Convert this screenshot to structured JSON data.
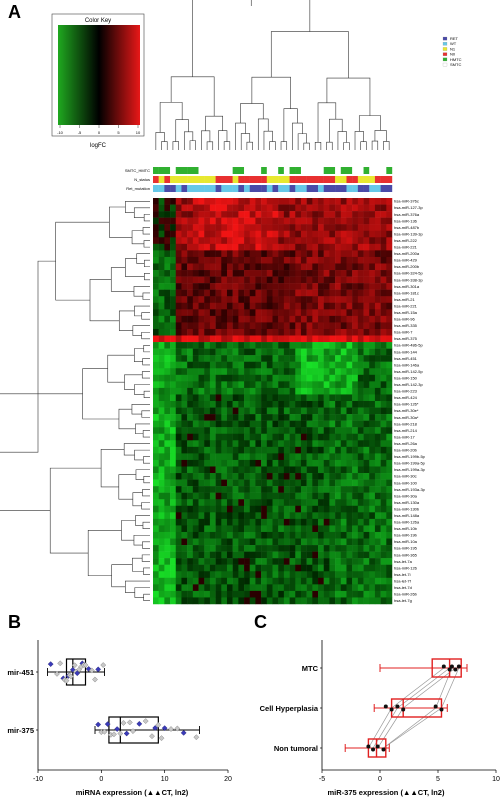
{
  "panels": {
    "a": "A",
    "b": "B",
    "c": "C"
  },
  "color_key": {
    "title": "Color Key",
    "xlabel": "logFC",
    "ticks": [
      "-10",
      "-5",
      "0",
      "5",
      "10"
    ]
  },
  "legend": [
    {
      "label": "RET",
      "color": "#4a4aa8"
    },
    {
      "label": "WT",
      "color": "#66c8e8"
    },
    {
      "label": "N1",
      "color": "#e8e830"
    },
    {
      "label": "N0",
      "color": "#e83030"
    },
    {
      "label": "HMTC",
      "color": "#30b030"
    },
    {
      "label": "SMTC",
      "color": "#ffffff"
    }
  ],
  "annotation_rows": [
    "SMTC_HMTC",
    "N_status",
    "Ret_mutation"
  ],
  "mirnas": [
    "hsa-miR-376c",
    "hsa-miR-127-3p",
    "hsa-miR-376a",
    "hsa-miR-136",
    "hsa-miR-487b",
    "hsa-miR-139-3p",
    "hsa-miR-222",
    "hsa-miR-221",
    "hsa-miR-200a",
    "hsa-miR-429",
    "hsa-miR-200b",
    "hsa-miR-324-5p",
    "hsa-miR-338-3p",
    "hsa-miR-301a",
    "hsa-miR-181c",
    "hsa-miR-21",
    "hsa-miR-221",
    "hsa-miR-15a",
    "hsa-miR-96",
    "hsa-miR-335",
    "hsa-miR-7",
    "hsa-miR-375",
    "hsa-miR-486-5p",
    "hsa-miR-144",
    "hsa-miR-451",
    "hsa-miR-146a",
    "hsa-miR-142-5p",
    "hsa-miR-150",
    "hsa-miR-142-3p",
    "hsa-miR-223",
    "hsa-miR-424",
    "hsa-miR-126*",
    "hsa-miR-30e*",
    "hsa-miR-30a*",
    "hsa-miR-218",
    "hsa-miR-214",
    "hsa-miR-17",
    "hsa-miR-26a",
    "hsa-miR-20b",
    "hsa-miR-199b-5p",
    "hsa-miR-199a-5p",
    "hsa-miR-199a-3p",
    "hsa-miR-30c",
    "hsa-miR-100",
    "hsa-miR-193a-3p",
    "hsa-miR-30a",
    "hsa-miR-130a",
    "hsa-miR-130b",
    "hsa-miR-148a",
    "hsa-miR-126a",
    "hsa-miR-10b",
    "hsa-miR-19b",
    "hsa-miR-10a",
    "hsa-miR-195",
    "hsa-miR-365",
    "hsa-let-7a",
    "hsa-miR-126",
    "hsa-let-7i",
    "hsa-let-7f",
    "hsa-let-7d",
    "hsa-miR-26b",
    "hsa-let-7g"
  ],
  "chart_data": [
    {
      "panel": "B",
      "type": "box",
      "xlabel": "miRNA expression (▲▲CT, ln2)",
      "xlim": [
        -10,
        20
      ],
      "xticks": [
        "-10",
        "0",
        "10",
        "20"
      ],
      "categories": [
        "mir-451",
        "mir-375"
      ],
      "boxes": [
        {
          "name": "mir-451",
          "min": -8.5,
          "q1": -5.5,
          "median": -4.5,
          "q3": -2.5,
          "max": 0.5,
          "points": [
            -8,
            -7,
            -6.5,
            -6,
            -5.8,
            -5.5,
            -5.2,
            -5,
            -4.8,
            -4.5,
            -4.2,
            -4,
            -3.8,
            -3.5,
            -3.2,
            -3,
            -2.8,
            -2.5,
            -2,
            -1.5,
            -1,
            -0.5,
            0.3
          ]
        },
        {
          "name": "mir-375",
          "min": -1,
          "q1": 1.2,
          "median": 3,
          "q3": 9,
          "max": 15.5,
          "points": [
            -0.5,
            0,
            0.5,
            1,
            1.5,
            2,
            2.5,
            3,
            3.5,
            4,
            4.5,
            5,
            6,
            7,
            8,
            8.5,
            9,
            9.5,
            10,
            11,
            12,
            13,
            15
          ]
        }
      ]
    },
    {
      "panel": "C",
      "type": "box",
      "xlabel": "miR-375 expression (▲▲CT, ln2)",
      "xlim": [
        -5,
        10
      ],
      "xticks": [
        "-5",
        "0",
        "5",
        "10"
      ],
      "categories": [
        "MTC",
        "Cell Hyperplasia",
        "Non tumoral"
      ],
      "boxes": [
        {
          "name": "MTC",
          "min": 0,
          "q1": 4.5,
          "median": 6,
          "q3": 7,
          "max": 7.5,
          "points": [
            5.5,
            6,
            6.2,
            6.5,
            6.8
          ]
        },
        {
          "name": "Cell Hyperplasia",
          "min": -0.5,
          "q1": 1,
          "median": 2,
          "q3": 5.3,
          "max": 5.8,
          "points": [
            0.5,
            1,
            1.5,
            2,
            4.8,
            5.3
          ]
        },
        {
          "name": "Non tumoral",
          "min": -3,
          "q1": -1,
          "median": -0.3,
          "q3": 0.5,
          "max": 0.8,
          "points": [
            -1,
            -0.6,
            -0.2,
            0.3
          ]
        }
      ],
      "pairs": [
        [
          6,
          1.5,
          -0.6
        ],
        [
          6.5,
          2,
          -0.2
        ],
        [
          6.8,
          5.3,
          0.3
        ],
        [
          5.5,
          1,
          -1
        ],
        [
          6.2,
          4.8,
          0.3
        ]
      ]
    }
  ]
}
